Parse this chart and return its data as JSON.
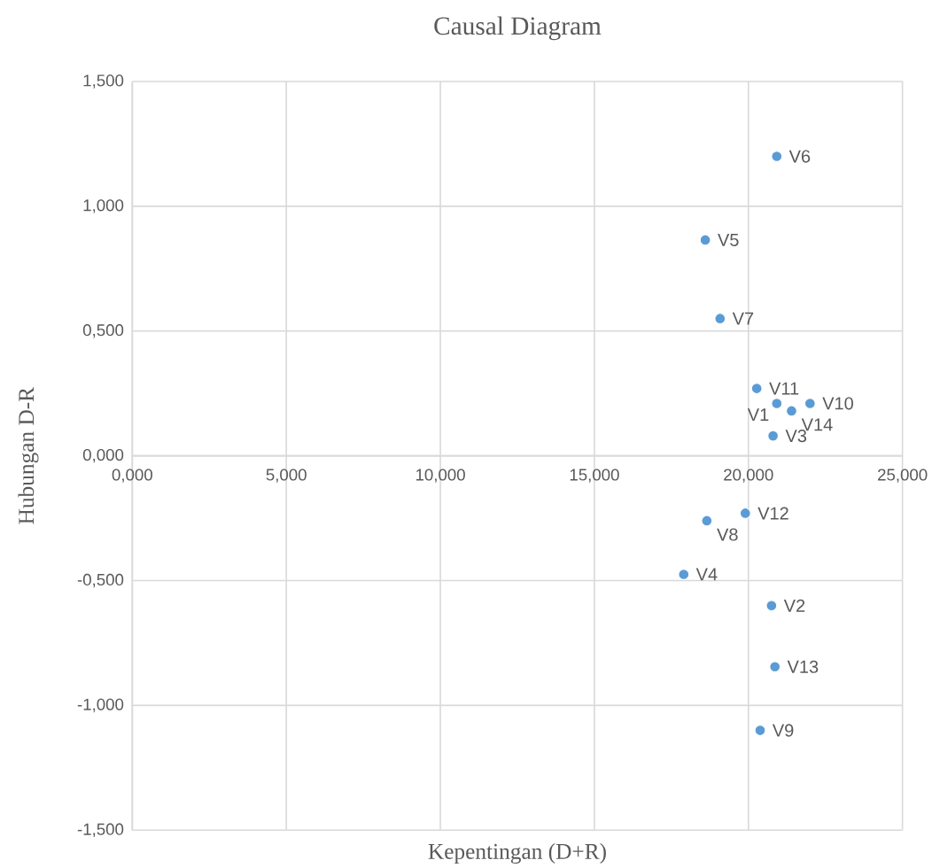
{
  "chart_data": {
    "type": "scatter",
    "title": "Causal Diagram",
    "xlabel": "Kepentingan (D+R)",
    "ylabel": "Hubungan D-R",
    "xlim": [
      0,
      25
    ],
    "ylim": [
      -1.5,
      1.5
    ],
    "xticks": [
      {
        "value": 0,
        "label": "0,000"
      },
      {
        "value": 5,
        "label": "5,000"
      },
      {
        "value": 10,
        "label": "10,000"
      },
      {
        "value": 15,
        "label": "15,000"
      },
      {
        "value": 20,
        "label": "20,000"
      },
      {
        "value": 25,
        "label": "25,000"
      }
    ],
    "yticks": [
      {
        "value": -1.5,
        "label": "-1,500"
      },
      {
        "value": -1,
        "label": "-1,000"
      },
      {
        "value": -0.5,
        "label": "-0,500"
      },
      {
        "value": 0,
        "label": "0,000"
      },
      {
        "value": 0.5,
        "label": "0,500"
      },
      {
        "value": 1,
        "label": "1,000"
      },
      {
        "value": 1.5,
        "label": "1,500"
      }
    ],
    "grid": true,
    "marker": "circle",
    "series": [
      {
        "color": "#5b9bd5",
        "x": [
          20.92,
          20.75,
          20.8,
          17.9,
          18.6,
          20.92,
          19.08,
          18.65,
          20.38,
          22.0,
          20.27,
          19.9,
          20.86,
          21.4
        ],
        "values": [
          0.21,
          -0.6,
          0.08,
          -0.475,
          0.865,
          1.2,
          0.55,
          -0.26,
          -1.1,
          0.21,
          0.27,
          -0.23,
          -0.845,
          0.18
        ]
      }
    ],
    "annotations": [
      {
        "text": "V1",
        "x": 20.92,
        "y": 0.21
      },
      {
        "text": "V2",
        "x": 20.75,
        "y": -0.6
      },
      {
        "text": "V3",
        "x": 20.8,
        "y": 0.08
      },
      {
        "text": "V4",
        "x": 17.9,
        "y": -0.475
      },
      {
        "text": "V5",
        "x": 18.6,
        "y": 0.865
      },
      {
        "text": "V6",
        "x": 20.92,
        "y": 1.2
      },
      {
        "text": "V7",
        "x": 19.08,
        "y": 0.55
      },
      {
        "text": "V8",
        "x": 18.65,
        "y": -0.26
      },
      {
        "text": "V9",
        "x": 20.38,
        "y": -1.1
      },
      {
        "text": "V10",
        "x": 22.0,
        "y": 0.21
      },
      {
        "text": "V11",
        "x": 20.27,
        "y": 0.27
      },
      {
        "text": "V12",
        "x": 19.9,
        "y": -0.23
      },
      {
        "text": "V13",
        "x": 20.86,
        "y": -0.845
      },
      {
        "text": "V14",
        "x": 21.4,
        "y": 0.18
      }
    ]
  }
}
